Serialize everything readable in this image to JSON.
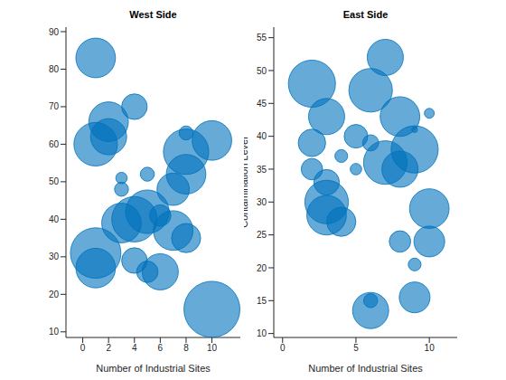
{
  "chart_data": [
    {
      "type": "bubble",
      "title": "West Side",
      "x_label": "Number of Industrial Sites",
      "color": "#0072BD",
      "x": [
        1,
        4,
        2,
        2,
        1,
        8,
        10,
        8,
        3,
        5,
        8,
        7,
        3,
        3,
        4,
        5,
        6,
        7,
        8,
        1,
        1,
        4,
        5,
        6,
        10
      ],
      "y": [
        83,
        70,
        66,
        62,
        60,
        58,
        61,
        63,
        51,
        52,
        52,
        48,
        48,
        39,
        40,
        42,
        41,
        37,
        35,
        31,
        27,
        29,
        26,
        26,
        16
      ],
      "sizes": [
        48,
        20,
        48,
        40,
        58,
        63,
        48,
        6,
        4,
        6,
        48,
        32,
        6,
        48,
        63,
        58,
        14,
        48,
        26,
        78,
        48,
        20,
        14,
        40,
        96
      ],
      "xlim": [
        -1.3,
        12.2
      ],
      "ylim": [
        8.5,
        91.2
      ],
      "xticks": [
        0,
        2,
        4,
        6,
        8,
        10
      ],
      "yticks": [
        10,
        20,
        30,
        40,
        50,
        60,
        70,
        80,
        90
      ]
    },
    {
      "type": "bubble",
      "title": "East Side",
      "x_label": "Number of Industrial Sites",
      "y_label": "Contamination Level",
      "color": "#0072BD",
      "x": [
        2,
        7,
        6,
        3,
        2,
        5,
        6,
        8,
        10,
        9,
        9,
        2,
        3,
        4,
        5,
        7,
        8,
        3,
        3,
        4,
        10,
        8,
        10,
        9,
        6,
        6,
        9
      ],
      "y": [
        48,
        52,
        47,
        43,
        39,
        40,
        39,
        43,
        43.5,
        41,
        38,
        35,
        33,
        37,
        35,
        36,
        35,
        30,
        28,
        27,
        29,
        24,
        24,
        20.5,
        15,
        13.5,
        15.5
      ],
      "sizes": [
        68,
        40,
        58,
        40,
        23,
        17,
        8,
        48,
        3,
        1,
        68,
        14,
        20,
        5,
        4,
        58,
        40,
        58,
        48,
        26,
        48,
        14,
        29,
        5,
        6,
        40,
        29
      ],
      "xlim": [
        -0.6,
        11.9
      ],
      "ylim": [
        9.4,
        56.6
      ],
      "xticks": [
        0,
        5,
        10
      ],
      "yticks": [
        10,
        15,
        20,
        25,
        30,
        35,
        40,
        45,
        50,
        55
      ]
    }
  ]
}
